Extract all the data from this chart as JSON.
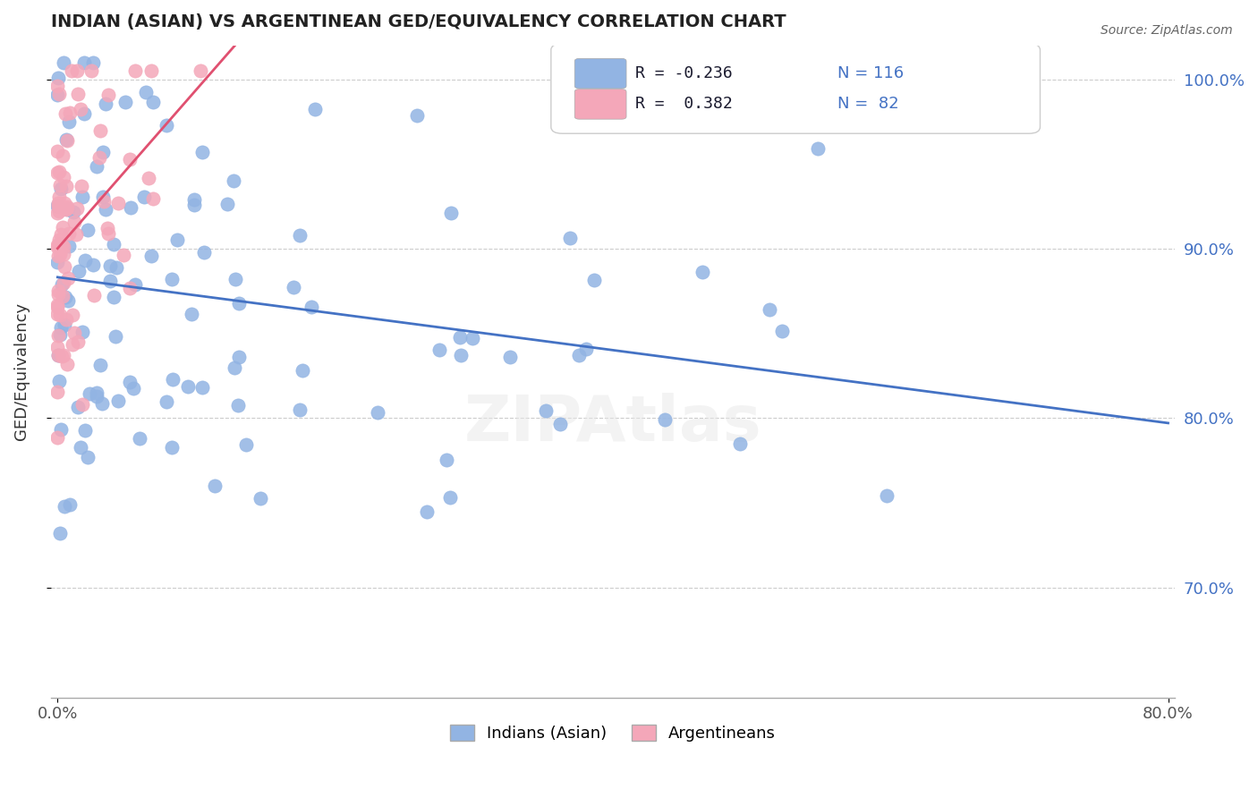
{
  "title": "INDIAN (ASIAN) VS ARGENTINEAN GED/EQUIVALENCY CORRELATION CHART",
  "source": "Source: ZipAtlas.com",
  "ylabel": "GED/Equivalency",
  "legend_r1": "R = -0.236",
  "legend_n1": "N = 116",
  "legend_r2": "R =  0.382",
  "legend_n2": "N =  82",
  "legend_label1": "Indians (Asian)",
  "legend_label2": "Argentineans",
  "blue_color": "#92b4e3",
  "blue_line_color": "#4472c4",
  "pink_color": "#f4a7b9",
  "pink_line_color": "#e05070",
  "watermark": "ZIPAtlas",
  "blue_r": -0.236,
  "blue_n": 116,
  "pink_r": 0.382,
  "pink_n": 82,
  "x_range": [
    0.0,
    0.8
  ],
  "y_range": [
    0.635,
    1.02
  ],
  "seed_blue": 42,
  "seed_pink": 7
}
